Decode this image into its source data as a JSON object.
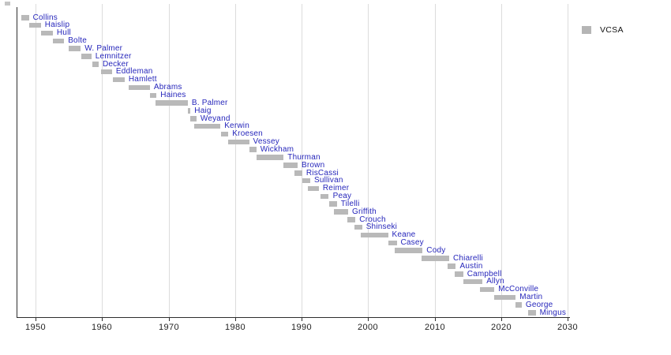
{
  "legend": {
    "label": "VCSA",
    "swatch_color": "#b5b5b5"
  },
  "colors": {
    "background": "#ffffff",
    "bar": "#b9b9b9",
    "label_text": "#2626bb",
    "axis": "#2e2e2e",
    "gridline": "#dcdcdc",
    "tick_text": "#222222"
  },
  "chart_data": {
    "type": "bar",
    "subtype": "horizontal-timeline-gantt",
    "title": "",
    "xlabel": "",
    "ylabel": "",
    "xlim": [
      1947.15,
      2030.4
    ],
    "grid": true,
    "legend_position": "top-right",
    "x_ticks": [
      1950,
      1960,
      1970,
      1980,
      1990,
      2000,
      2010,
      2020,
      2030
    ],
    "series_label": "VCSA",
    "series": [
      {
        "name": "Collins",
        "start": 1947.8,
        "end": 1949.0
      },
      {
        "name": "Haislip",
        "start": 1949.0,
        "end": 1950.8
      },
      {
        "name": "Hull",
        "start": 1950.8,
        "end": 1952.6
      },
      {
        "name": "Bolte",
        "start": 1952.6,
        "end": 1954.3
      },
      {
        "name": "W. Palmer",
        "start": 1955.0,
        "end": 1956.8
      },
      {
        "name": "Lemnitzer",
        "start": 1956.9,
        "end": 1958.4
      },
      {
        "name": "Decker",
        "start": 1958.5,
        "end": 1959.5
      },
      {
        "name": "Eddleman",
        "start": 1959.9,
        "end": 1961.5
      },
      {
        "name": "Hamlett",
        "start": 1961.6,
        "end": 1963.4
      },
      {
        "name": "Abrams",
        "start": 1964.0,
        "end": 1967.2
      },
      {
        "name": "Haines",
        "start": 1967.2,
        "end": 1968.2
      },
      {
        "name": "B. Palmer",
        "start": 1968.0,
        "end": 1972.9
      },
      {
        "name": "Haig",
        "start": 1972.9,
        "end": 1973.3
      },
      {
        "name": "Weyand",
        "start": 1973.3,
        "end": 1974.2
      },
      {
        "name": "Kerwin",
        "start": 1973.8,
        "end": 1977.8
      },
      {
        "name": "Kroesen",
        "start": 1977.9,
        "end": 1979.0
      },
      {
        "name": "Vessey",
        "start": 1978.9,
        "end": 1982.1
      },
      {
        "name": "Wickham",
        "start": 1982.1,
        "end": 1983.2
      },
      {
        "name": "Thurman",
        "start": 1983.2,
        "end": 1987.3
      },
      {
        "name": "Brown",
        "start": 1987.3,
        "end": 1989.4
      },
      {
        "name": "RisCassi",
        "start": 1988.9,
        "end": 1990.1
      },
      {
        "name": "Sullivan",
        "start": 1990.1,
        "end": 1991.3
      },
      {
        "name": "Reimer",
        "start": 1991.0,
        "end": 1992.6
      },
      {
        "name": "Peay",
        "start": 1992.9,
        "end": 1994.1
      },
      {
        "name": "Tilelli",
        "start": 1994.1,
        "end": 1995.3
      },
      {
        "name": "Griffith",
        "start": 1994.9,
        "end": 1997.0
      },
      {
        "name": "Crouch",
        "start": 1996.9,
        "end": 1998.1
      },
      {
        "name": "Shinseki",
        "start": 1998.0,
        "end": 1999.1
      },
      {
        "name": "Keane",
        "start": 1998.9,
        "end": 2003.0
      },
      {
        "name": "Casey",
        "start": 2003.0,
        "end": 2004.3
      },
      {
        "name": "Cody",
        "start": 2004.0,
        "end": 2008.2
      },
      {
        "name": "Chiarelli",
        "start": 2008.0,
        "end": 2012.2
      },
      {
        "name": "Austin",
        "start": 2012.0,
        "end": 2013.2
      },
      {
        "name": "Campbell",
        "start": 2013.0,
        "end": 2014.3
      },
      {
        "name": "Allyn",
        "start": 2014.3,
        "end": 2017.2
      },
      {
        "name": "McConville",
        "start": 2016.8,
        "end": 2019.0
      },
      {
        "name": "Martin",
        "start": 2019.0,
        "end": 2022.2
      },
      {
        "name": "George",
        "start": 2022.1,
        "end": 2023.1
      },
      {
        "name": "Mingus",
        "start": 2024.0,
        "end": 2025.2
      }
    ]
  }
}
